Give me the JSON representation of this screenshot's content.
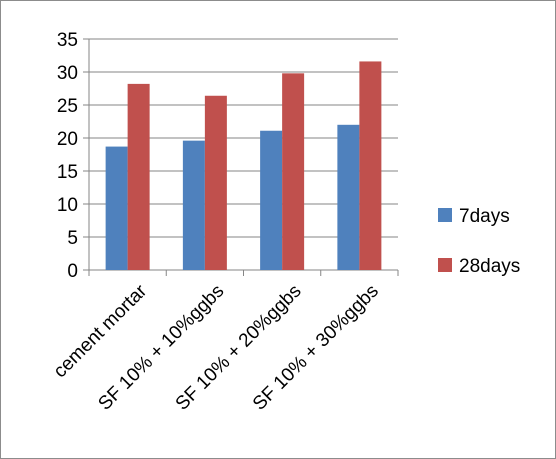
{
  "chart_data": {
    "type": "bar",
    "categories": [
      "cement mortar",
      "SF 10% + 10%ggbs",
      "SF 10% + 20%ggbs",
      "SF 10% + 30%ggbs"
    ],
    "series": [
      {
        "name": "7days",
        "values": [
          18.7,
          19.6,
          21.1,
          22.0
        ]
      },
      {
        "name": "28days",
        "values": [
          28.2,
          26.4,
          29.8,
          31.6
        ]
      }
    ],
    "ylim": [
      0,
      35
    ],
    "yticks": [
      0,
      5,
      10,
      15,
      20,
      25,
      30,
      35
    ],
    "colors": {
      "7days": "#4f81bd",
      "28days": "#c0504d"
    },
    "grid": true,
    "legend_position": "right",
    "title": "",
    "xlabel": "",
    "ylabel": ""
  }
}
